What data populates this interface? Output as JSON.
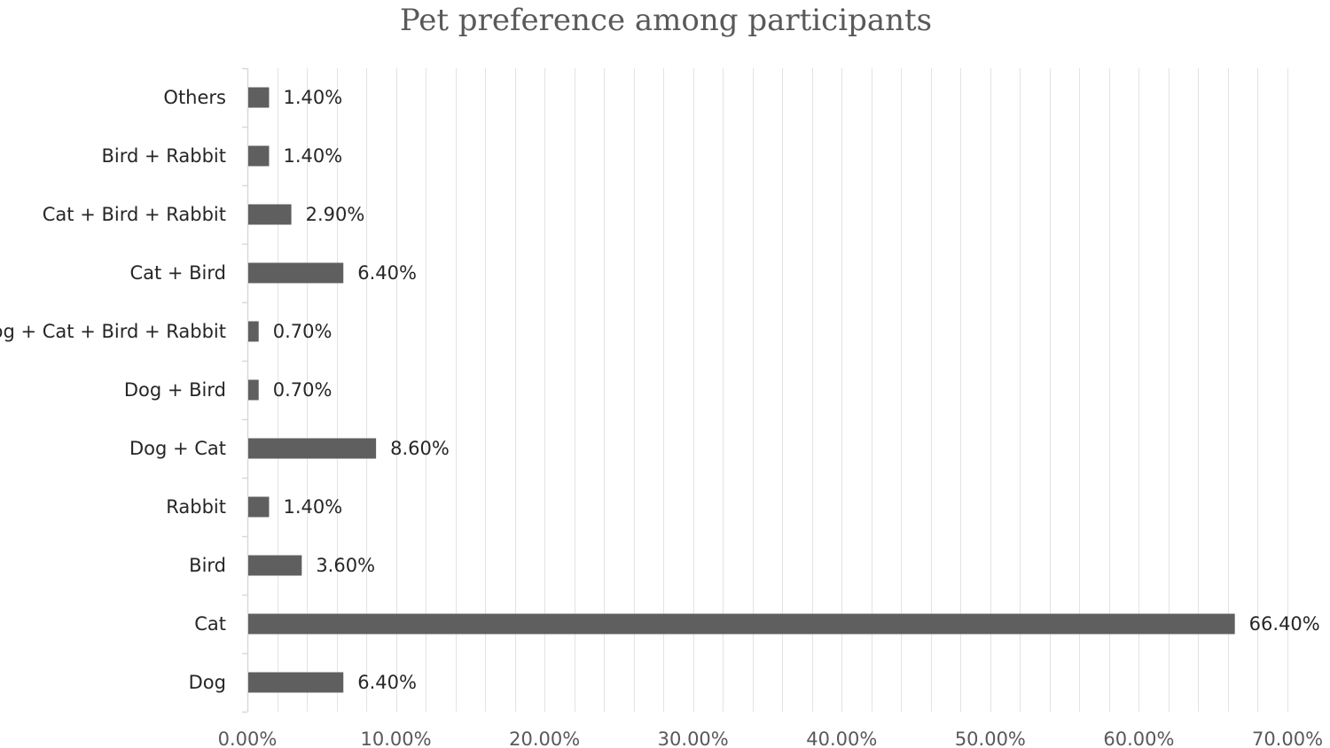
{
  "chart_data": {
    "type": "bar",
    "orientation": "horizontal",
    "title": "Pet preference among participants",
    "categories": [
      "Dog",
      "Cat",
      "Bird",
      "Rabbit",
      "Dog + Cat",
      "Dog  + Bird",
      "Dog + Cat + Bird + Rabbit",
      "Cat + Bird",
      "Cat + Bird + Rabbit",
      "Bird + Rabbit",
      "Others"
    ],
    "values": [
      6.4,
      66.4,
      3.6,
      1.4,
      8.6,
      0.7,
      0.7,
      6.4,
      2.9,
      1.4,
      1.4
    ],
    "data_labels": [
      "6.40%",
      "66.40%",
      "3.60%",
      "1.40%",
      "8.60%",
      "0.70%",
      "0.70%",
      "6.40%",
      "2.90%",
      "1.40%",
      "1.40%"
    ],
    "xlim": [
      0,
      70
    ],
    "x_ticks": [
      0,
      10,
      20,
      30,
      40,
      50,
      60,
      70
    ],
    "x_tick_labels": [
      "0.00%",
      "10.00%",
      "20.00%",
      "30.00%",
      "40.00%",
      "50.00%",
      "60.00%",
      "70.00%"
    ],
    "x_minor_step": 2,
    "grid": true,
    "legend": "none",
    "xlabel": "",
    "ylabel": "",
    "bar_color": "#5f5f5f"
  }
}
